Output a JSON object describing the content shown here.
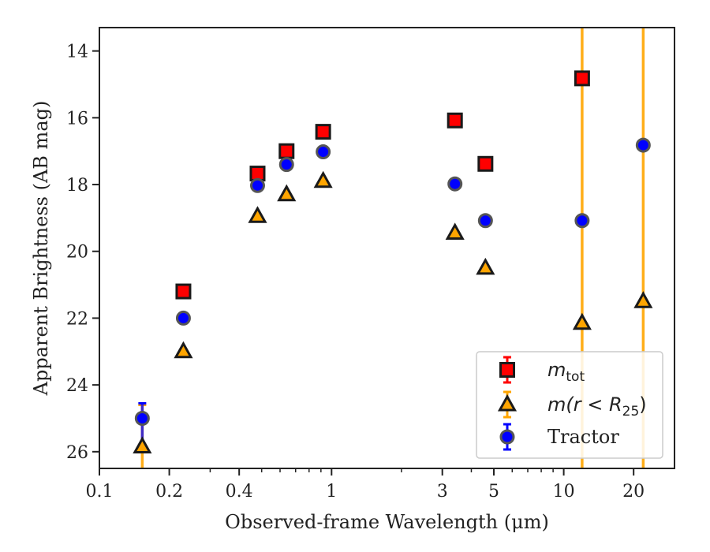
{
  "chart_data": {
    "type": "scatter",
    "title": "",
    "xlabel": "Observed-frame Wavelength (μm)",
    "ylabel": "Apparent Brightness (AB mag)",
    "xscale": "log",
    "xlim": [
      0.1,
      30
    ],
    "ylim": [
      26.5,
      13.3
    ],
    "y_inverted": true,
    "grid": false,
    "legend_position": "lower-right",
    "x_ticks": [
      {
        "value": 0.1,
        "label": "0.1"
      },
      {
        "value": 0.2,
        "label": "0.2"
      },
      {
        "value": 0.4,
        "label": "0.4"
      },
      {
        "value": 1,
        "label": "1"
      },
      {
        "value": 3,
        "label": "3"
      },
      {
        "value": 5,
        "label": "5"
      },
      {
        "value": 10,
        "label": "10"
      },
      {
        "value": 20,
        "label": "20"
      }
    ],
    "y_ticks": [
      {
        "value": 14,
        "label": "14"
      },
      {
        "value": 16,
        "label": "16"
      },
      {
        "value": 18,
        "label": "18"
      },
      {
        "value": 20,
        "label": "20"
      },
      {
        "value": 22,
        "label": "22"
      },
      {
        "value": 24,
        "label": "24"
      },
      {
        "value": 26,
        "label": "26"
      }
    ],
    "series": [
      {
        "name": "m_tot",
        "legend_label": {
          "main": "m",
          "sub": "tot",
          "tail": ""
        },
        "marker": "square",
        "color": "#ff0000",
        "edge_color": "#1a1a1a",
        "points": [
          {
            "x": 0.23,
            "y": 21.2
          },
          {
            "x": 0.48,
            "y": 17.67
          },
          {
            "x": 0.64,
            "y": 17.0
          },
          {
            "x": 0.92,
            "y": 16.42
          },
          {
            "x": 3.4,
            "y": 16.08
          },
          {
            "x": 4.6,
            "y": 17.38
          },
          {
            "x": 12.0,
            "y": 14.82
          }
        ]
      },
      {
        "name": "m(r<R25)",
        "legend_label": {
          "main": "m(r < R",
          "sub": "25",
          "tail": ")"
        },
        "marker": "triangle",
        "color": "#ffa500",
        "edge_color": "#1a1a1a",
        "points": [
          {
            "x": 0.153,
            "y": 25.85
          },
          {
            "x": 0.23,
            "y": 23.0
          },
          {
            "x": 0.48,
            "y": 18.95
          },
          {
            "x": 0.64,
            "y": 18.3
          },
          {
            "x": 0.92,
            "y": 17.9
          },
          {
            "x": 3.4,
            "y": 19.45
          },
          {
            "x": 4.6,
            "y": 20.5
          },
          {
            "x": 12.0,
            "y": 22.15
          },
          {
            "x": 22.0,
            "y": 21.5
          }
        ],
        "error_bars": [
          {
            "x": 0.153,
            "y_low": 24.6,
            "y_high": 26.5
          },
          {
            "x": 12.0,
            "y_low": 13.3,
            "y_high": 26.5
          },
          {
            "x": 22.0,
            "y_low": 13.3,
            "y_high": 26.5
          }
        ]
      },
      {
        "name": "Tractor",
        "legend_label": {
          "main": "Tractor",
          "sub": "",
          "tail": ""
        },
        "marker": "circle",
        "color": "#0000ff",
        "edge_color": "#555555",
        "points": [
          {
            "x": 0.153,
            "y": 25.0
          },
          {
            "x": 0.23,
            "y": 22.0
          },
          {
            "x": 0.48,
            "y": 18.03
          },
          {
            "x": 0.64,
            "y": 17.4
          },
          {
            "x": 0.92,
            "y": 17.02
          },
          {
            "x": 3.4,
            "y": 17.98
          },
          {
            "x": 4.6,
            "y": 19.08
          },
          {
            "x": 12.0,
            "y": 19.08
          },
          {
            "x": 22.0,
            "y": 16.82
          }
        ],
        "error_bars": [
          {
            "x": 0.153,
            "y_low": 24.55,
            "y_high": 25.85
          }
        ]
      }
    ]
  }
}
